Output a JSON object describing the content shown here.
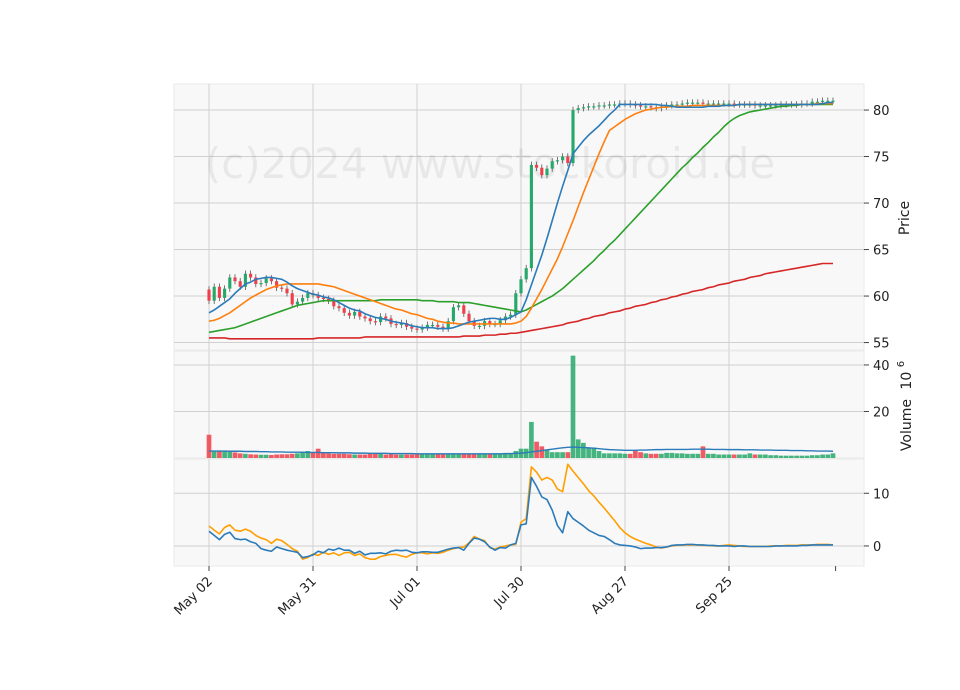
{
  "chart_data": {
    "type": "candlestick",
    "watermark": "(c)2024 www.stockoroid.de",
    "x_tick_labels": [
      "May 02",
      "May 31",
      "Jul 01",
      "Jul 30",
      "Aug 27",
      "Sep 25"
    ],
    "x_tick_index": [
      0,
      20,
      40,
      60,
      80,
      100
    ],
    "n_days": 121,
    "price_panel": {
      "ylabel": "Price",
      "ylim": [
        54.2,
        82.8
      ],
      "yticks": [
        55,
        60,
        65,
        70,
        75,
        80
      ],
      "ytick_labels": [
        "55",
        "60",
        "65",
        "70",
        "75",
        "80"
      ],
      "colors": {
        "up": "#26a86a",
        "down": "#ef3f4a",
        "sma_blue": "#2b7bba",
        "sma_orange": "#ff7f0e",
        "sma_green": "#2ca02c",
        "sma_red": "#d62728"
      },
      "close": [
        59.5,
        61.0,
        59.8,
        60.8,
        62.0,
        61.6,
        61.0,
        62.4,
        62.0,
        61.3,
        61.4,
        61.9,
        61.6,
        60.9,
        60.8,
        60.3,
        59.1,
        59.4,
        59.8,
        60.3,
        60.1,
        59.8,
        59.7,
        59.5,
        58.9,
        58.7,
        58.2,
        57.9,
        58.3,
        57.8,
        57.6,
        57.3,
        57.2,
        57.8,
        57.6,
        57.0,
        56.9,
        57.1,
        56.7,
        56.5,
        56.4,
        56.6,
        56.9,
        56.9,
        56.7,
        56.5,
        57.3,
        58.8,
        59.0,
        58.1,
        57.3,
        56.8,
        56.8,
        57.3,
        57.0,
        57.0,
        57.4,
        57.8,
        58.0,
        60.3,
        61.8,
        63.0,
        74.1,
        73.8,
        73.0,
        73.7,
        74.5,
        74.6,
        75.0,
        74.3,
        80.0,
        80.2,
        80.3,
        80.4,
        80.4,
        80.5,
        80.5,
        80.6,
        80.6,
        80.7,
        80.7,
        80.6,
        80.5,
        80.4,
        80.4,
        80.3,
        80.2,
        80.4,
        80.5,
        80.6,
        80.6,
        80.7,
        80.8,
        80.8,
        80.8,
        80.7,
        80.7,
        80.7,
        80.7,
        80.7,
        80.7,
        80.6,
        80.6,
        80.6,
        80.6,
        80.5,
        80.5,
        80.5,
        80.5,
        80.5,
        80.6,
        80.6,
        80.6,
        80.6,
        80.7,
        80.7,
        80.9,
        80.9,
        81.0,
        81.0,
        81.0
      ],
      "sma_blue": [
        58.2,
        58.5,
        58.9,
        59.3,
        59.7,
        60.3,
        60.8,
        61.3,
        61.5,
        61.8,
        61.9,
        62.0,
        62.0,
        61.9,
        61.8,
        61.5,
        61.1,
        60.8,
        60.6,
        60.4,
        60.2,
        60.1,
        59.9,
        59.8,
        59.6,
        59.3,
        59.0,
        58.7,
        58.5,
        58.4,
        58.1,
        57.9,
        57.7,
        57.6,
        57.5,
        57.3,
        57.2,
        57.1,
        57.0,
        56.8,
        56.7,
        56.6,
        56.6,
        56.6,
        56.5,
        56.5,
        56.5,
        56.6,
        56.8,
        57.0,
        57.2,
        57.3,
        57.4,
        57.5,
        57.6,
        57.6,
        57.5,
        57.5,
        57.7,
        58.0,
        58.3,
        59.6,
        61.2,
        62.8,
        64.4,
        66.2,
        68.1,
        70.0,
        71.8,
        73.5,
        75.3,
        76.0,
        76.7,
        77.3,
        77.8,
        78.3,
        78.9,
        79.5,
        80.0,
        80.6,
        80.6,
        80.6,
        80.6,
        80.6,
        80.6,
        80.6,
        80.6,
        80.5,
        80.5,
        80.4,
        80.3,
        80.3,
        80.3,
        80.3,
        80.3,
        80.3,
        80.4,
        80.4,
        80.4,
        80.5,
        80.5,
        80.5,
        80.6,
        80.6,
        80.6,
        80.6,
        80.6,
        80.6,
        80.6,
        80.6,
        80.6,
        80.6,
        80.6,
        80.6,
        80.6,
        80.6,
        80.6,
        80.6,
        80.7,
        80.8,
        80.8
      ],
      "sma_orange": [
        57.3,
        57.4,
        57.6,
        57.9,
        58.2,
        58.6,
        59.0,
        59.4,
        59.8,
        60.1,
        60.4,
        60.7,
        60.9,
        61.1,
        61.2,
        61.3,
        61.3,
        61.3,
        61.3,
        61.3,
        61.3,
        61.3,
        61.2,
        61.1,
        61.0,
        60.8,
        60.6,
        60.4,
        60.2,
        60.0,
        59.8,
        59.6,
        59.4,
        59.2,
        59.0,
        58.8,
        58.6,
        58.5,
        58.3,
        58.1,
        58.0,
        57.8,
        57.6,
        57.5,
        57.3,
        57.2,
        57.1,
        57.1,
        57.0,
        57.0,
        57.0,
        57.0,
        57.0,
        57.0,
        57.0,
        57.0,
        57.0,
        57.0,
        57.0,
        57.1,
        57.3,
        57.8,
        58.7,
        59.7,
        60.7,
        61.8,
        62.9,
        64.0,
        65.3,
        66.7,
        68.1,
        69.6,
        71.1,
        72.5,
        73.9,
        75.3,
        76.6,
        77.8,
        78.2,
        78.6,
        79.0,
        79.3,
        79.6,
        79.8,
        80.0,
        80.1,
        80.2,
        80.3,
        80.3,
        80.4,
        80.4,
        80.4,
        80.4,
        80.5,
        80.5,
        80.5,
        80.5,
        80.5,
        80.5,
        80.5,
        80.5,
        80.5,
        80.6,
        80.6,
        80.6,
        80.6,
        80.6,
        80.6,
        80.6,
        80.6,
        80.6,
        80.6,
        80.6,
        80.6,
        80.6,
        80.6,
        80.6,
        80.7,
        80.7,
        80.7,
        80.7
      ],
      "sma_green": [
        56.1,
        56.2,
        56.3,
        56.4,
        56.5,
        56.6,
        56.8,
        57.0,
        57.2,
        57.4,
        57.6,
        57.8,
        58.0,
        58.2,
        58.4,
        58.6,
        58.8,
        59.0,
        59.1,
        59.2,
        59.3,
        59.4,
        59.5,
        59.5,
        59.5,
        59.5,
        59.5,
        59.5,
        59.5,
        59.5,
        59.5,
        59.5,
        59.5,
        59.6,
        59.6,
        59.6,
        59.6,
        59.6,
        59.6,
        59.6,
        59.6,
        59.5,
        59.5,
        59.5,
        59.4,
        59.4,
        59.4,
        59.4,
        59.3,
        59.3,
        59.3,
        59.2,
        59.1,
        59.0,
        58.9,
        58.8,
        58.7,
        58.6,
        58.5,
        58.4,
        58.3,
        58.5,
        58.8,
        59.1,
        59.4,
        59.7,
        60.0,
        60.4,
        60.8,
        61.3,
        61.8,
        62.3,
        62.8,
        63.3,
        63.8,
        64.4,
        64.9,
        65.5,
        66.0,
        66.6,
        67.2,
        67.8,
        68.4,
        69.0,
        69.6,
        70.2,
        70.8,
        71.4,
        72.0,
        72.6,
        73.2,
        73.8,
        74.3,
        74.9,
        75.4,
        76.0,
        76.5,
        77.1,
        77.6,
        78.2,
        78.7,
        79.1,
        79.4,
        79.6,
        79.8,
        79.9,
        80.0,
        80.1,
        80.2,
        80.3,
        80.4,
        80.4,
        80.5,
        80.5,
        80.6,
        80.6,
        80.6,
        80.6,
        80.6,
        80.6,
        80.6
      ],
      "sma_red": [
        55.5,
        55.5,
        55.5,
        55.5,
        55.4,
        55.4,
        55.4,
        55.4,
        55.4,
        55.4,
        55.4,
        55.4,
        55.4,
        55.4,
        55.4,
        55.4,
        55.4,
        55.4,
        55.4,
        55.4,
        55.4,
        55.5,
        55.5,
        55.5,
        55.5,
        55.5,
        55.5,
        55.5,
        55.5,
        55.5,
        55.6,
        55.6,
        55.6,
        55.6,
        55.6,
        55.6,
        55.6,
        55.6,
        55.6,
        55.6,
        55.6,
        55.6,
        55.6,
        55.6,
        55.6,
        55.6,
        55.6,
        55.6,
        55.6,
        55.7,
        55.7,
        55.7,
        55.7,
        55.8,
        55.8,
        55.8,
        55.9,
        55.9,
        56.0,
        56.0,
        56.1,
        56.2,
        56.3,
        56.4,
        56.5,
        56.6,
        56.7,
        56.8,
        56.9,
        57.1,
        57.2,
        57.3,
        57.5,
        57.6,
        57.8,
        57.9,
        58.0,
        58.2,
        58.3,
        58.4,
        58.6,
        58.7,
        58.9,
        59.0,
        59.1,
        59.3,
        59.4,
        59.6,
        59.7,
        59.9,
        60.0,
        60.2,
        60.3,
        60.5,
        60.6,
        60.7,
        60.9,
        61.0,
        61.2,
        61.3,
        61.4,
        61.6,
        61.7,
        61.8,
        62.0,
        62.1,
        62.2,
        62.4,
        62.5,
        62.6,
        62.7,
        62.8,
        62.9,
        63.0,
        63.1,
        63.2,
        63.3,
        63.4,
        63.5,
        63.5,
        63.5
      ]
    },
    "volume_panel": {
      "ylabel": "Volume",
      "ylabel_exponent": "10",
      "ylabel_exponent_power": "6",
      "ylim": [
        0,
        46
      ],
      "yticks": [
        20,
        40
      ],
      "ytick_labels": [
        "20",
        "40"
      ],
      "colors": {
        "up": "#26a86a",
        "down": "#ef3f4a",
        "avg": "#2b7bba"
      },
      "volume": [
        10.0,
        3.0,
        2.8,
        3.0,
        2.7,
        2.4,
        2.0,
        1.8,
        1.6,
        1.5,
        1.4,
        1.4,
        1.3,
        1.5,
        1.6,
        1.6,
        1.8,
        2.0,
        2.5,
        3.0,
        2.5,
        4.0,
        2.5,
        2.0,
        1.8,
        1.8,
        1.8,
        1.6,
        1.5,
        1.5,
        1.5,
        2.0,
        1.8,
        2.0,
        1.5,
        1.7,
        1.5,
        1.5,
        1.5,
        1.5,
        1.5,
        1.5,
        1.5,
        1.5,
        1.5,
        1.5,
        1.5,
        1.6,
        1.6,
        1.6,
        1.7,
        1.7,
        1.7,
        1.7,
        1.7,
        1.8,
        1.8,
        2.0,
        2.0,
        3.0,
        4.0,
        4.0,
        15.5,
        7.0,
        5.0,
        3.5,
        2.5,
        2.5,
        2.5,
        2.5,
        44.0,
        8.0,
        6.5,
        4.5,
        4.5,
        3.0,
        2.0,
        2.0,
        2.0,
        2.0,
        1.8,
        1.8,
        3.0,
        2.5,
        2.0,
        1.8,
        1.8,
        1.8,
        2.2,
        2.2,
        2.0,
        2.0,
        1.8,
        1.8,
        1.8,
        5.0,
        1.8,
        1.8,
        1.5,
        1.5,
        1.5,
        1.5,
        1.5,
        1.5,
        2.0,
        1.5,
        1.5,
        1.5,
        1.2,
        1.2,
        1.0,
        1.0,
        1.0,
        1.0,
        1.0,
        1.0,
        1.2,
        1.2,
        1.5,
        1.5,
        2.0
      ],
      "avg": [
        3.0,
        3.0,
        3.0,
        3.0,
        2.9,
        2.9,
        2.9,
        2.8,
        2.8,
        2.8,
        2.7,
        2.7,
        2.6,
        2.6,
        2.6,
        2.5,
        2.5,
        2.5,
        2.5,
        2.4,
        2.4,
        2.4,
        2.3,
        2.3,
        2.3,
        2.2,
        2.2,
        2.2,
        2.1,
        2.1,
        2.1,
        2.0,
        2.0,
        2.0,
        2.0,
        1.9,
        1.9,
        1.9,
        1.9,
        1.9,
        1.8,
        1.8,
        1.8,
        1.8,
        1.8,
        1.8,
        1.8,
        1.8,
        1.8,
        1.8,
        1.8,
        1.8,
        1.8,
        1.8,
        1.8,
        1.8,
        1.8,
        1.9,
        1.9,
        2.0,
        2.1,
        2.3,
        2.6,
        2.9,
        3.2,
        3.5,
        3.8,
        4.1,
        4.4,
        4.6,
        4.7,
        4.6,
        4.5,
        4.4,
        4.2,
        4.0,
        3.8,
        3.6,
        3.5,
        3.4,
        3.3,
        3.3,
        3.3,
        3.4,
        3.4,
        3.5,
        3.6,
        3.6,
        3.7,
        3.7,
        3.7,
        3.7,
        3.7,
        3.8,
        3.8,
        3.8,
        3.8,
        3.7,
        3.7,
        3.7,
        3.6,
        3.6,
        3.6,
        3.5,
        3.5,
        3.5,
        3.4,
        3.4,
        3.4,
        3.3,
        3.3,
        3.3,
        3.2,
        3.2,
        3.2,
        3.1,
        3.1,
        3.0,
        3.0,
        3.0,
        2.9
      ]
    },
    "macd_panel": {
      "ylim": [
        -3.8,
        16.5
      ],
      "yticks": [
        0,
        10
      ],
      "ytick_labels": [
        "0",
        "10"
      ],
      "colors": {
        "macd": "#2b7bba",
        "signal": "#ff9f00"
      },
      "macd": [
        2.8,
        2.0,
        1.2,
        2.2,
        2.6,
        1.4,
        1.2,
        1.3,
        0.8,
        0.5,
        -0.5,
        -0.8,
        -1.0,
        -0.2,
        -0.5,
        -0.8,
        -1.0,
        -1.2,
        -2.2,
        -2.0,
        -1.7,
        -1.0,
        -1.3,
        -0.6,
        -0.8,
        -0.4,
        -0.8,
        -0.8,
        -1.4,
        -1.0,
        -1.7,
        -1.4,
        -1.4,
        -1.3,
        -1.5,
        -1.0,
        -0.8,
        -0.9,
        -0.8,
        -1.2,
        -1.3,
        -1.1,
        -1.1,
        -1.2,
        -1.2,
        -0.9,
        -0.6,
        -0.4,
        -0.3,
        -0.8,
        0.5,
        1.5,
        1.3,
        0.8,
        -0.2,
        -0.8,
        -0.3,
        -0.4,
        0.2,
        0.5,
        4.0,
        4.2,
        13.0,
        11.3,
        9.3,
        8.8,
        6.8,
        3.9,
        2.5,
        6.5,
        5.2,
        4.5,
        3.8,
        3.0,
        2.5,
        2.0,
        1.8,
        1.2,
        0.5,
        0.2,
        0.1,
        0.0,
        -0.2,
        -0.5,
        -0.4,
        -0.4,
        -0.3,
        -0.3,
        -0.2,
        0.1,
        0.2,
        0.2,
        0.3,
        0.3,
        0.2,
        0.2,
        0.1,
        0.1,
        0.0,
        0.0,
        0.0,
        -0.1,
        0.0,
        0.0,
        -0.1,
        -0.1,
        -0.1,
        -0.1,
        -0.1,
        0.0,
        0.0,
        0.0,
        0.0,
        0.0,
        0.1,
        0.1,
        0.2,
        0.2,
        0.2,
        0.2,
        0.2
      ],
      "signal": [
        3.8,
        3.0,
        2.3,
        3.5,
        4.0,
        3.0,
        2.8,
        3.2,
        2.8,
        2.0,
        1.5,
        1.2,
        0.5,
        1.3,
        1.0,
        0.3,
        -0.5,
        -1.0,
        -2.5,
        -2.2,
        -1.5,
        -1.8,
        -1.2,
        -1.6,
        -1.3,
        -1.8,
        -1.3,
        -1.2,
        -1.8,
        -1.5,
        -2.2,
        -2.5,
        -2.5,
        -2.0,
        -1.8,
        -1.6,
        -1.6,
        -1.9,
        -2.1,
        -1.6,
        -1.3,
        -1.3,
        -1.5,
        -1.3,
        -1.4,
        -1.2,
        -0.8,
        -0.5,
        -0.3,
        -0.2,
        0.6,
        1.8,
        1.3,
        1.0,
        -0.3,
        -0.6,
        -0.2,
        0.0,
        0.2,
        0.3,
        4.5,
        5.2,
        15.0,
        14.0,
        12.5,
        13.0,
        12.5,
        10.8,
        10.3,
        15.5,
        14.2,
        13.0,
        11.8,
        10.5,
        9.5,
        8.3,
        7.2,
        6.0,
        4.8,
        3.5,
        2.5,
        1.8,
        1.3,
        0.9,
        0.5,
        0.2,
        -0.2,
        -0.4,
        -0.2,
        0.0,
        0.1,
        0.2,
        0.2,
        0.2,
        0.2,
        0.1,
        0.1,
        0.0,
        0.0,
        0.1,
        0.2,
        0.1,
        0.0,
        -0.1,
        -0.1,
        -0.1,
        -0.1,
        -0.1,
        0.0,
        0.0,
        0.0,
        0.1,
        0.1,
        0.1,
        0.2,
        0.2,
        0.2,
        0.3,
        0.3,
        0.3,
        0.2
      ]
    }
  }
}
